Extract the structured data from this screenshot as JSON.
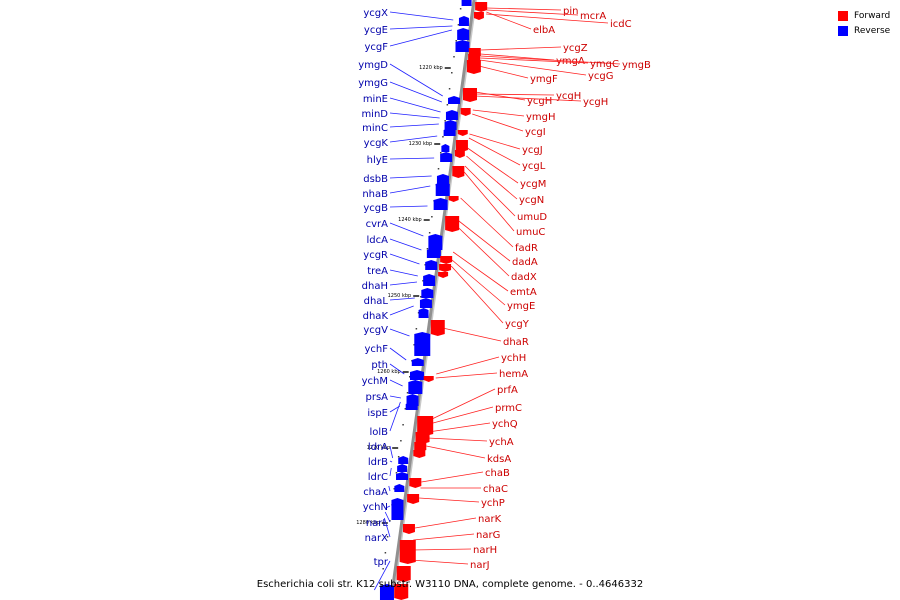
{
  "legend": {
    "forward_label": "Forward",
    "reverse_label": "Reverse",
    "forward_color": "#ff0000",
    "reverse_color": "#0000ff"
  },
  "caption": "Escherichia coli str. K12 substr. W3110 DNA, complete genome. - 0..4646332",
  "colors": {
    "axis": "#909090",
    "tick": "#000000",
    "label_forward": "#cc0000",
    "label_reverse": "#0000aa"
  },
  "ticks": [
    "1220 kbp",
    "1230 kbp",
    "1240 kbp",
    "1250 kbp",
    "1260 kbp",
    "1270 kbp",
    "1280 kbp"
  ],
  "reverse_genes": [
    "ycgX",
    "ycgE",
    "ycgF",
    "ymgD",
    "ymgG",
    "minE",
    "minD",
    "minC",
    "ycgK",
    "hlyE",
    "dsbB",
    "nhaB",
    "ycgB",
    "cvrA",
    "ldcA",
    "ycgR",
    "treA",
    "dhaH",
    "dhaL",
    "dhaK",
    "ycgV",
    "ychF",
    "pth",
    "ychM",
    "prsA",
    "ispE",
    "lolB",
    "ldrA",
    "ldrB",
    "ldrC",
    "chaA",
    "ychN",
    "narL",
    "narX",
    "tpr"
  ],
  "forward_genes": [
    "pin",
    "mcrA",
    "icdC",
    "elbA",
    "ycgZ",
    "ymgA",
    "ymgB",
    "ymgC",
    "ycgG",
    "ymgF",
    "ycgH",
    "ycgH",
    "ycgH",
    "ymgH",
    "ycgI",
    "ycgJ",
    "ycgL",
    "ycgM",
    "ycgN",
    "umuD",
    "umuC",
    "fadR",
    "dadA",
    "dadX",
    "emtA",
    "ymgE",
    "ycgY",
    "dhaR",
    "ychH",
    "hemA",
    "prfA",
    "prmC",
    "ychQ",
    "ychA",
    "kdsA",
    "chaB",
    "chaC",
    "ychP",
    "narK",
    "narG",
    "narH",
    "narJ"
  ]
}
